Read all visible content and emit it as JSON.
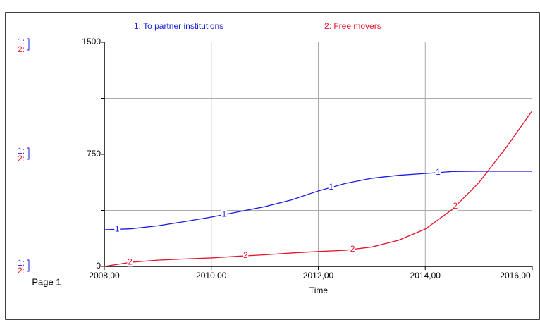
{
  "chart_data": {
    "type": "line",
    "x": [
      2008,
      2008.5,
      2009,
      2009.5,
      2010,
      2010.5,
      2011,
      2011.5,
      2012,
      2012.5,
      2013,
      2013.5,
      2014,
      2014.5,
      2015,
      2015.5,
      2016
    ],
    "series": [
      {
        "name": "1: To partner institutions",
        "marker": "1",
        "color": "#1a1ae6",
        "values": [
          245,
          252,
          272,
          300,
          330,
          365,
          400,
          445,
          505,
          555,
          590,
          610,
          622,
          635,
          637,
          637,
          637
        ]
      },
      {
        "name": "2: Free  movers",
        "marker": "2",
        "color": "#e6142d",
        "values": [
          0,
          28,
          42,
          50,
          57,
          68,
          78,
          90,
          100,
          108,
          130,
          175,
          250,
          380,
          560,
          790,
          1042
        ]
      }
    ],
    "axis_keys": [
      "1:",
      "2:"
    ],
    "xlabel": "Time",
    "page_label": "Page 1",
    "xlim": [
      2008,
      2016
    ],
    "ylim": [
      0,
      1500
    ],
    "xticks": [
      {
        "value": 2008,
        "label": "2008,00"
      },
      {
        "value": 2010,
        "label": "2010,00"
      },
      {
        "value": 2012,
        "label": "2012,00"
      },
      {
        "value": 2014,
        "label": "2014,00"
      },
      {
        "value": 2016,
        "label": "2016,00"
      }
    ],
    "yticks": [
      0,
      750,
      1500
    ],
    "ygrid": [
      375,
      1125
    ],
    "xgrid": [
      2010,
      2012,
      2014
    ]
  }
}
